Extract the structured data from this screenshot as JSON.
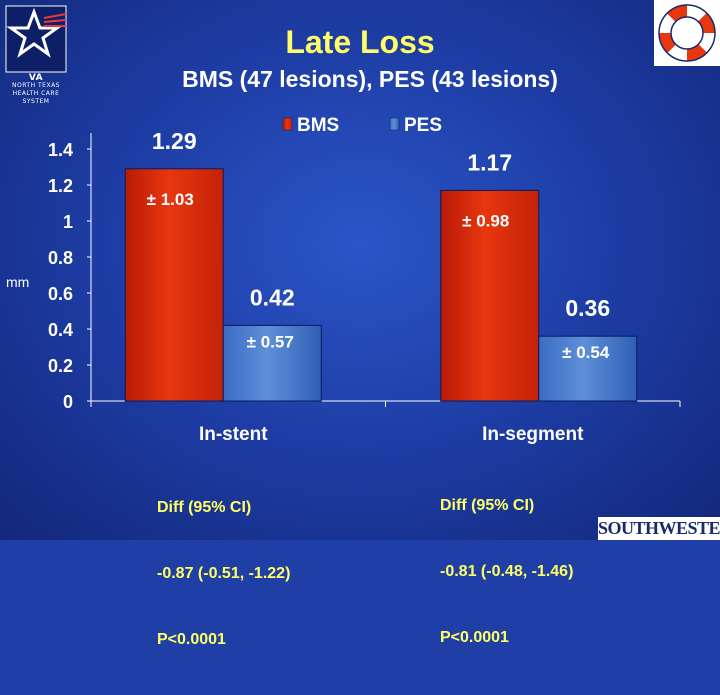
{
  "title": "Late Loss",
  "subtitle": "BMS (47 lesions), PES (43 lesions)",
  "logos": {
    "va_lines": [
      "VA",
      "NORTH TEXAS",
      "HEALTH CARE",
      "SYSTEM"
    ],
    "southwestern": "SOUTHWESTERN"
  },
  "colors": {
    "bms": "#e8360f",
    "pes": "#5f8fd8",
    "label": "#ffff66",
    "axis": "#ffffff"
  },
  "chart_data": {
    "type": "bar",
    "title": "Late Loss",
    "ylabel": "mm",
    "ylim": [
      0,
      1.4
    ],
    "yticks": [
      "0",
      "0.2",
      "0.4",
      "0.6",
      "0.8",
      "1",
      "1.2",
      "1.4"
    ],
    "categories": [
      "In-stent",
      "In-segment"
    ],
    "legend_position": "top",
    "series": [
      {
        "name": "BMS",
        "values": [
          1.29,
          1.17
        ],
        "value_labels": [
          "1.29",
          "1.17"
        ],
        "sd_labels": [
          "± 1.03",
          "± 0.98"
        ]
      },
      {
        "name": "PES",
        "values": [
          0.42,
          0.36
        ],
        "value_labels": [
          "0.42",
          "0.36"
        ],
        "sd_labels": [
          "± 0.57",
          "± 0.54"
        ]
      }
    ],
    "annotations": [
      [
        "Diff (95% CI)",
        "-0.87 (-0.51, -1.22)",
        "P<0.0001"
      ],
      [
        "Diff (95% CI)",
        "-0.81 (-0.48, -1.46)",
        "P<0.0001"
      ]
    ]
  }
}
